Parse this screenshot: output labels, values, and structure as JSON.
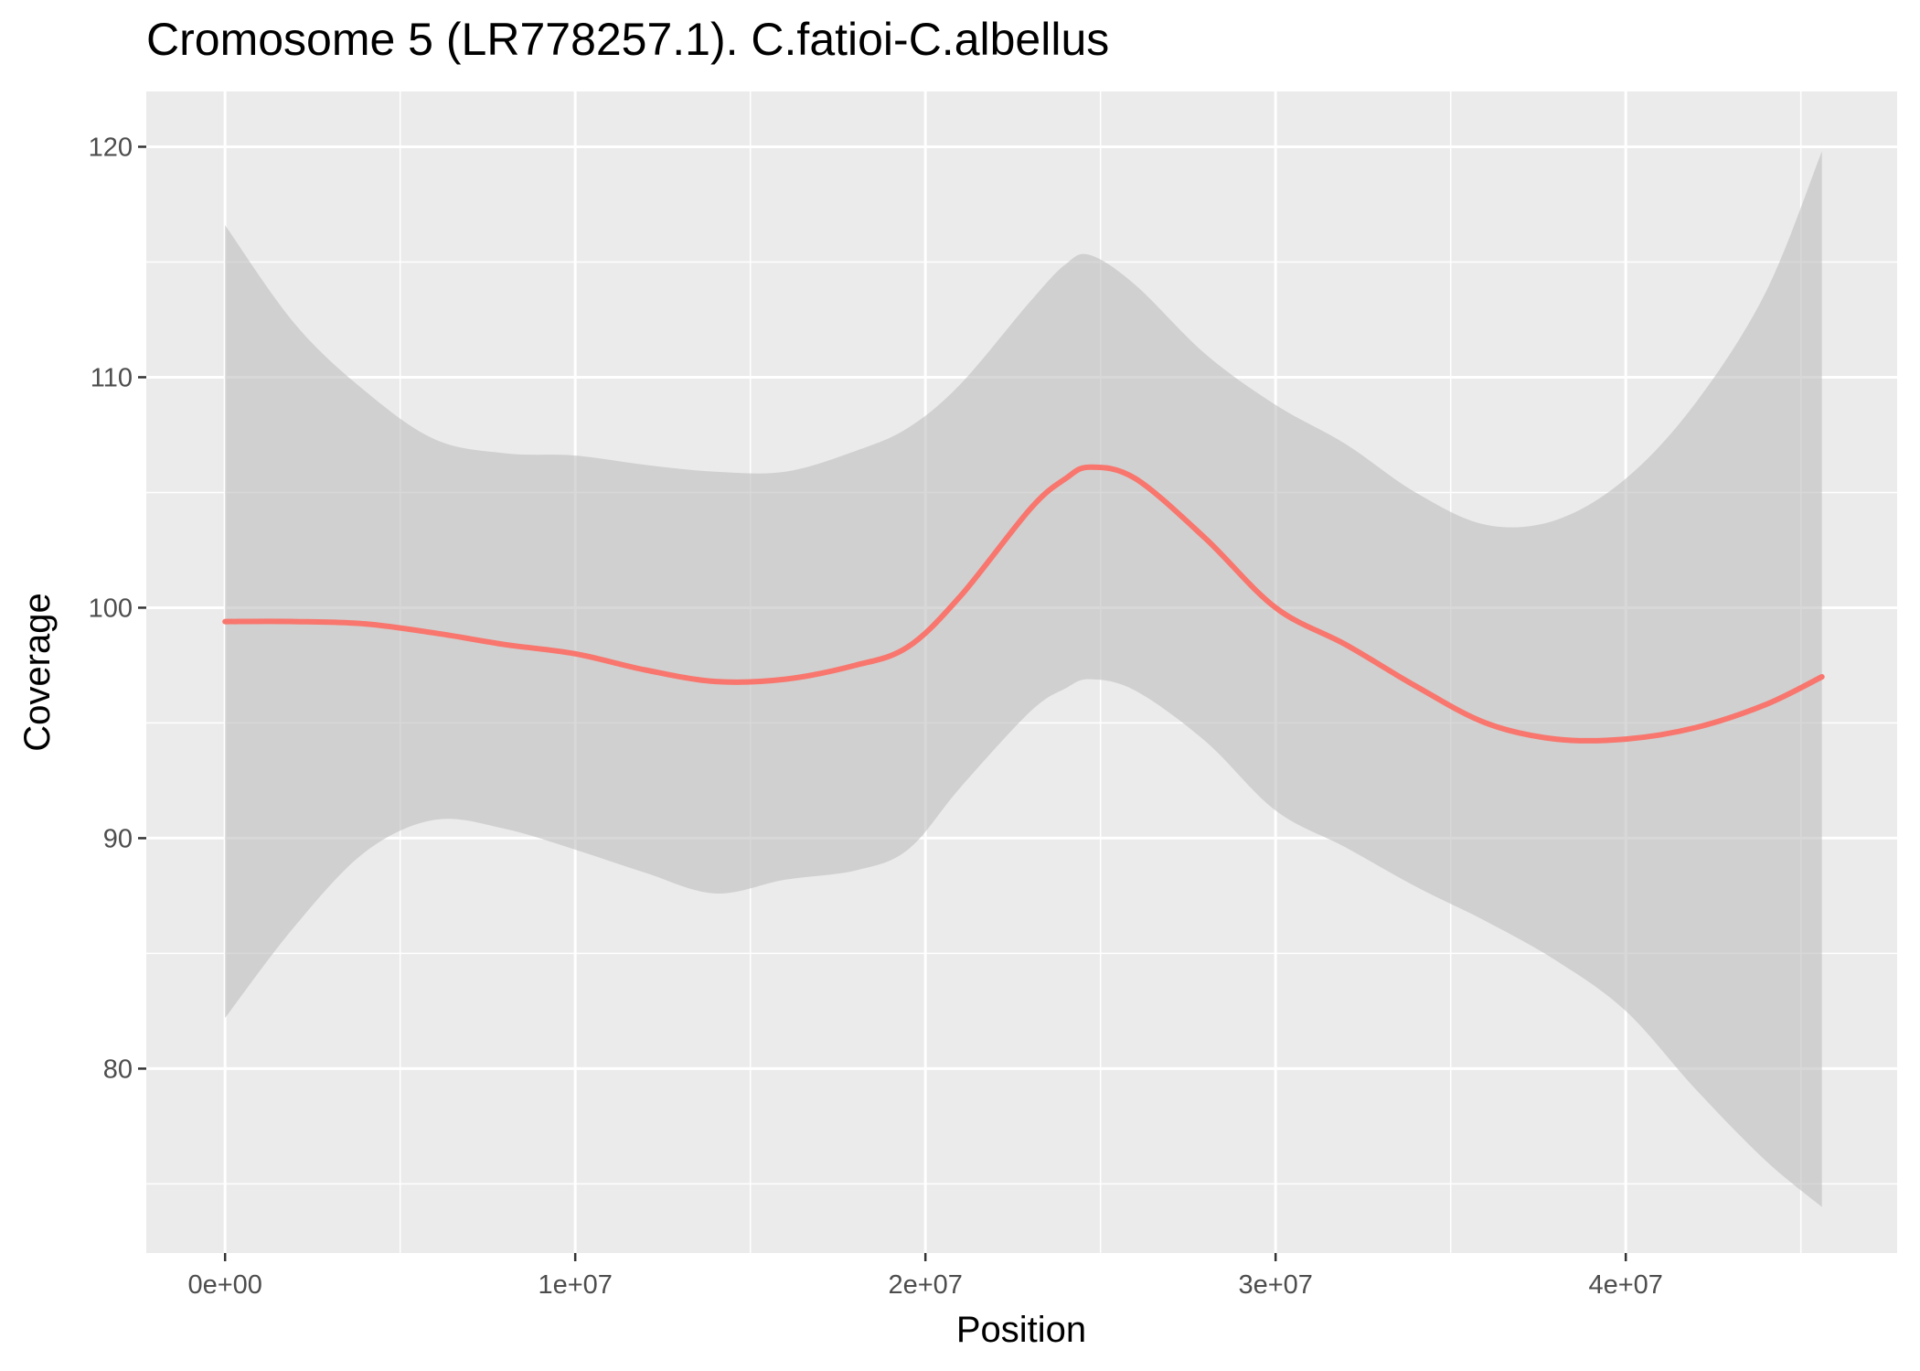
{
  "chart_data": {
    "type": "line",
    "title": "Cromosome 5 (LR778257.1). C.fatioi-C.albellus",
    "xlabel": "Position",
    "ylabel": "Coverage",
    "xlim": [
      -2250000,
      47750000
    ],
    "ylim": [
      72.0,
      122.4
    ],
    "x_ticks": [
      0,
      10000000,
      20000000,
      30000000,
      40000000
    ],
    "x_tick_labels": [
      "0e+00",
      "1e+07",
      "2e+07",
      "3e+07",
      "4e+07"
    ],
    "y_ticks": [
      80,
      90,
      100,
      110,
      120
    ],
    "y_tick_labels": [
      "80",
      "90",
      "100",
      "110",
      "120"
    ],
    "grid": true,
    "legend": "none",
    "colors": {
      "panel_background": "#EBEBEB",
      "grid": "#FFFFFF",
      "line": "#F8766D",
      "band": "#BEBEBE",
      "tick_text": "#4D4D4D"
    },
    "series": [
      {
        "x": [
          0,
          2000000,
          4000000,
          6000000,
          8000000,
          10000000,
          12000000,
          14000000,
          16000000,
          18000000,
          19500000,
          21000000,
          23000000,
          24000000,
          24700000,
          26000000,
          28000000,
          30000000,
          32000000,
          34000000,
          36000000,
          38000000,
          40000000,
          42000000,
          44000000,
          45600000
        ],
        "y": [
          99.4,
          99.4,
          99.3,
          98.9,
          98.4,
          98.0,
          97.3,
          96.8,
          96.9,
          97.5,
          98.3,
          100.5,
          104.3,
          105.6,
          106.1,
          105.6,
          103.0,
          100.0,
          98.4,
          96.6,
          95.0,
          94.3,
          94.3,
          94.8,
          95.8,
          97.0
        ],
        "ci_upper": [
          116.6,
          112.3,
          109.4,
          107.3,
          106.7,
          106.6,
          106.2,
          105.9,
          105.9,
          106.8,
          107.8,
          109.7,
          113.3,
          114.9,
          115.3,
          114.0,
          111.0,
          108.8,
          107.1,
          105.0,
          103.6,
          103.8,
          105.6,
          108.9,
          113.7,
          119.8
        ],
        "ci_lower": [
          82.2,
          86.2,
          89.4,
          90.8,
          90.4,
          89.5,
          88.5,
          87.6,
          88.2,
          88.6,
          89.5,
          92.2,
          95.5,
          96.5,
          96.9,
          96.4,
          94.2,
          91.2,
          89.6,
          87.9,
          86.4,
          84.7,
          82.5,
          79.1,
          76.0,
          74.0
        ]
      }
    ]
  }
}
